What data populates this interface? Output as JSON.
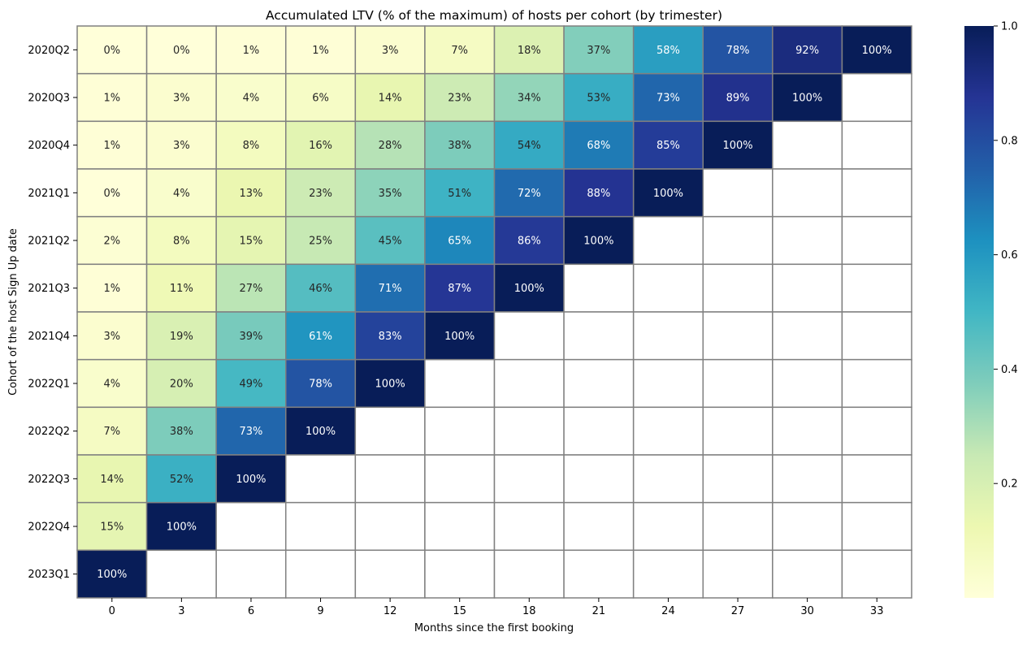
{
  "chart_data": {
    "type": "heatmap",
    "title": "Accumulated LTV (% of the maximum) of hosts per cohort (by trimester)",
    "xlabel": "Months since the first booking",
    "ylabel": "Cohort of the host Sign Up date",
    "x_categories": [
      "0",
      "3",
      "6",
      "9",
      "12",
      "15",
      "18",
      "21",
      "24",
      "27",
      "30",
      "33"
    ],
    "y_categories": [
      "2020Q2",
      "2020Q3",
      "2020Q4",
      "2021Q1",
      "2021Q2",
      "2021Q3",
      "2021Q4",
      "2022Q1",
      "2022Q2",
      "2022Q3",
      "2022Q4",
      "2023Q1"
    ],
    "values": [
      [
        0.0,
        0.0,
        0.01,
        0.01,
        0.03,
        0.07,
        0.18,
        0.37,
        0.58,
        0.78,
        0.92,
        1.0
      ],
      [
        0.01,
        0.03,
        0.04,
        0.06,
        0.14,
        0.23,
        0.34,
        0.53,
        0.73,
        0.89,
        1.0,
        null
      ],
      [
        0.01,
        0.03,
        0.08,
        0.16,
        0.28,
        0.38,
        0.54,
        0.68,
        0.85,
        1.0,
        null,
        null
      ],
      [
        0.0,
        0.04,
        0.13,
        0.23,
        0.35,
        0.51,
        0.72,
        0.88,
        1.0,
        null,
        null,
        null
      ],
      [
        0.02,
        0.08,
        0.15,
        0.25,
        0.45,
        0.65,
        0.86,
        1.0,
        null,
        null,
        null,
        null
      ],
      [
        0.01,
        0.11,
        0.27,
        0.46,
        0.71,
        0.87,
        1.0,
        null,
        null,
        null,
        null,
        null
      ],
      [
        0.03,
        0.19,
        0.39,
        0.61,
        0.83,
        1.0,
        null,
        null,
        null,
        null,
        null,
        null
      ],
      [
        0.04,
        0.2,
        0.49,
        0.78,
        1.0,
        null,
        null,
        null,
        null,
        null,
        null,
        null
      ],
      [
        0.07,
        0.38,
        0.73,
        1.0,
        null,
        null,
        null,
        null,
        null,
        null,
        null,
        null
      ],
      [
        0.14,
        0.52,
        1.0,
        null,
        null,
        null,
        null,
        null,
        null,
        null,
        null,
        null
      ],
      [
        0.15,
        1.0,
        null,
        null,
        null,
        null,
        null,
        null,
        null,
        null,
        null,
        null
      ],
      [
        1.0,
        null,
        null,
        null,
        null,
        null,
        null,
        null,
        null,
        null,
        null,
        null
      ]
    ],
    "cell_labels": [
      [
        "0%",
        "0%",
        "1%",
        "1%",
        "3%",
        "7%",
        "18%",
        "37%",
        "58%",
        "78%",
        "92%",
        "100%"
      ],
      [
        "1%",
        "3%",
        "4%",
        "6%",
        "14%",
        "23%",
        "34%",
        "53%",
        "73%",
        "89%",
        "100%",
        ""
      ],
      [
        "1%",
        "3%",
        "8%",
        "16%",
        "28%",
        "38%",
        "54%",
        "68%",
        "85%",
        "100%",
        "",
        ""
      ],
      [
        "0%",
        "4%",
        "13%",
        "23%",
        "35%",
        "51%",
        "72%",
        "88%",
        "100%",
        "",
        "",
        ""
      ],
      [
        "2%",
        "8%",
        "15%",
        "25%",
        "45%",
        "65%",
        "86%",
        "100%",
        "",
        "",
        "",
        ""
      ],
      [
        "1%",
        "11%",
        "27%",
        "46%",
        "71%",
        "87%",
        "100%",
        "",
        "",
        "",
        "",
        ""
      ],
      [
        "3%",
        "19%",
        "39%",
        "61%",
        "83%",
        "100%",
        "",
        "",
        "",
        "",
        "",
        ""
      ],
      [
        "4%",
        "20%",
        "49%",
        "78%",
        "100%",
        "",
        "",
        "",
        "",
        "",
        "",
        ""
      ],
      [
        "7%",
        "38%",
        "73%",
        "100%",
        "",
        "",
        "",
        "",
        "",
        "",
        "",
        ""
      ],
      [
        "14%",
        "52%",
        "100%",
        "",
        "",
        "",
        "",
        "",
        "",
        "",
        "",
        ""
      ],
      [
        "15%",
        "100%",
        "",
        "",
        "",
        "",
        "",
        "",
        "",
        "",
        "",
        ""
      ],
      [
        "100%",
        "",
        "",
        "",
        "",
        "",
        "",
        "",
        "",
        "",
        "",
        ""
      ]
    ],
    "colormap": "YlGnBu",
    "colorbar": {
      "vmin": 0.0,
      "vmax": 1.0,
      "ticks": [
        0.2,
        0.4,
        0.6,
        0.8,
        1.0
      ],
      "tick_labels": [
        "0.2",
        "0.4",
        "0.6",
        "0.8",
        "1.0"
      ]
    },
    "cell_border_color": "#808080",
    "legend_position": "right"
  }
}
